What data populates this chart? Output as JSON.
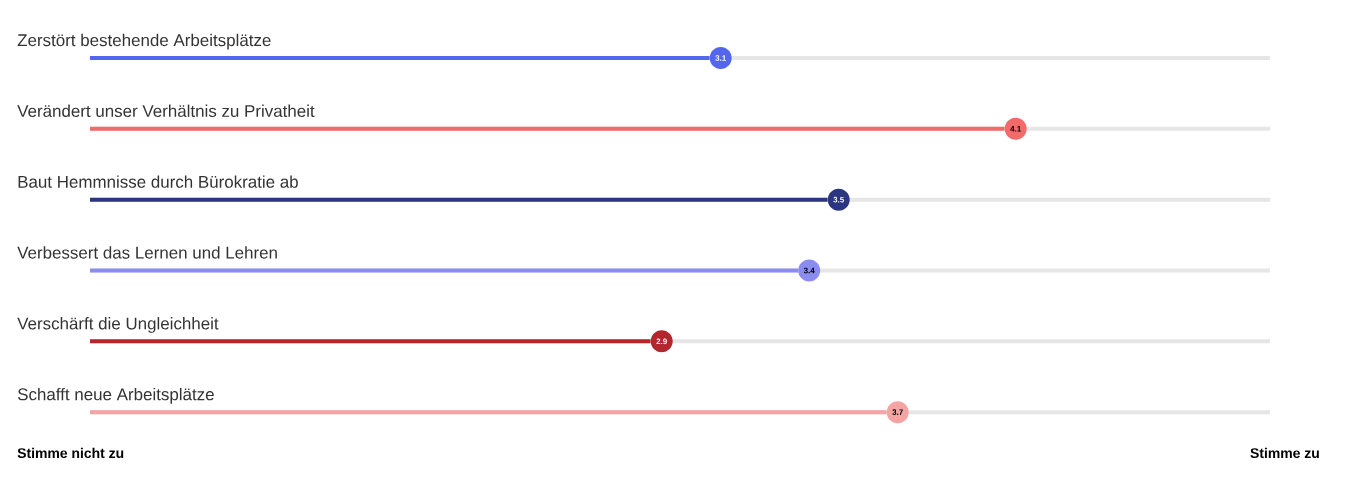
{
  "chart_data": {
    "type": "bar",
    "orientation": "horizontal",
    "categories": [
      "Zerstört bestehende Arbeitsplätze",
      "Verändert unser Verhältnis zu Privatheit",
      "Baut Hemmnisse durch Bürokratie ab",
      "Verbessert das Lernen und Lehren",
      "Verschärft die Ungleichheit",
      "Schafft neue Arbeitsplätze"
    ],
    "values": [
      3.1,
      4.1,
      3.5,
      3.4,
      2.9,
      3.7
    ],
    "colors": [
      "#5566ee",
      "#f46a6a",
      "#2b3580",
      "#8a8cf0",
      "#b3262d",
      "#f5a3a3"
    ],
    "xlim": [
      1,
      5
    ],
    "data_labels": true,
    "annotations": [
      "Stimme nicht zu",
      "Stimme zu"
    ]
  }
}
